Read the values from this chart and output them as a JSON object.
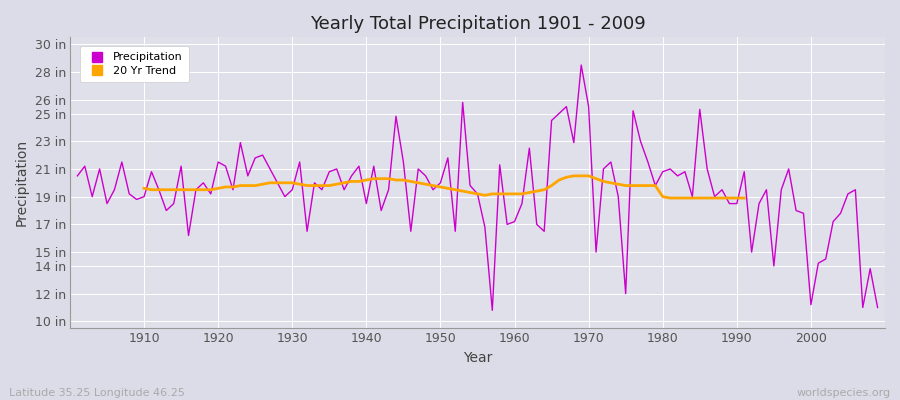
{
  "title": "Yearly Total Precipitation 1901 - 2009",
  "xlabel": "Year",
  "ylabel": "Precipitation",
  "lat_lon_label": "Latitude 35.25 Longitude 46.25",
  "watermark": "worldspecies.org",
  "bg_color": "#dcdce8",
  "plot_bg_color": "#e0e0ea",
  "precip_color": "#cc00cc",
  "trend_color": "#ffa500",
  "years": [
    1901,
    1902,
    1903,
    1904,
    1905,
    1906,
    1907,
    1908,
    1909,
    1910,
    1911,
    1912,
    1913,
    1914,
    1915,
    1916,
    1917,
    1918,
    1919,
    1920,
    1921,
    1922,
    1923,
    1924,
    1925,
    1926,
    1927,
    1928,
    1929,
    1930,
    1931,
    1932,
    1933,
    1934,
    1935,
    1936,
    1937,
    1938,
    1939,
    1940,
    1941,
    1942,
    1943,
    1944,
    1945,
    1946,
    1947,
    1948,
    1949,
    1950,
    1951,
    1952,
    1953,
    1954,
    1955,
    1956,
    1957,
    1958,
    1959,
    1960,
    1961,
    1962,
    1963,
    1964,
    1965,
    1966,
    1967,
    1968,
    1969,
    1970,
    1971,
    1972,
    1973,
    1974,
    1975,
    1976,
    1977,
    1978,
    1979,
    1980,
    1981,
    1982,
    1983,
    1984,
    1985,
    1986,
    1987,
    1988,
    1989,
    1990,
    1991,
    1992,
    1993,
    1994,
    1995,
    1996,
    1997,
    1998,
    1999,
    2000,
    2001,
    2002,
    2003,
    2004,
    2005,
    2006,
    2007,
    2008,
    2009
  ],
  "precip": [
    20.5,
    21.2,
    19.0,
    21.0,
    18.5,
    19.5,
    21.5,
    19.2,
    18.8,
    19.0,
    20.8,
    19.5,
    18.0,
    18.5,
    21.2,
    16.2,
    19.5,
    20.0,
    19.2,
    21.5,
    21.2,
    19.5,
    22.9,
    20.5,
    21.8,
    22.0,
    21.0,
    20.0,
    19.0,
    19.5,
    21.5,
    16.5,
    20.0,
    19.5,
    20.8,
    21.0,
    19.5,
    20.5,
    21.2,
    18.5,
    21.2,
    18.0,
    19.5,
    24.8,
    21.5,
    16.5,
    21.0,
    20.5,
    19.5,
    20.0,
    21.8,
    16.5,
    25.8,
    19.8,
    19.2,
    16.8,
    10.8,
    21.3,
    17.0,
    17.2,
    18.5,
    22.5,
    17.0,
    16.5,
    24.5,
    25.0,
    25.5,
    22.9,
    28.5,
    25.5,
    15.0,
    21.0,
    21.5,
    19.0,
    12.0,
    25.2,
    23.0,
    21.5,
    19.8,
    20.8,
    21.0,
    20.5,
    20.8,
    19.0,
    25.3,
    21.0,
    19.0,
    19.5,
    18.5,
    18.5,
    20.8,
    15.0,
    18.5,
    19.5,
    14.0,
    19.5,
    21.0,
    18.0,
    17.8,
    11.2,
    14.2,
    14.5,
    17.2,
    17.8,
    19.2,
    19.5,
    11.0,
    13.8,
    11.0
  ],
  "trend_years": [
    1910,
    1911,
    1912,
    1913,
    1914,
    1915,
    1916,
    1917,
    1918,
    1919,
    1920,
    1921,
    1922,
    1923,
    1924,
    1925,
    1926,
    1927,
    1928,
    1929,
    1930,
    1931,
    1932,
    1933,
    1934,
    1935,
    1936,
    1937,
    1938,
    1939,
    1940,
    1941,
    1942,
    1943,
    1944,
    1945,
    1946,
    1947,
    1948,
    1949,
    1950,
    1951,
    1952,
    1953,
    1954,
    1955,
    1956,
    1957,
    1958,
    1959,
    1960,
    1961,
    1962,
    1963,
    1964,
    1965,
    1966,
    1967,
    1968,
    1969,
    1970,
    1971,
    1972,
    1973,
    1974,
    1975,
    1976,
    1977,
    1978,
    1979,
    1980,
    1981,
    1982,
    1983,
    1984,
    1985,
    1986,
    1987,
    1988,
    1989,
    1990,
    1991
  ],
  "trend": [
    19.6,
    19.5,
    19.5,
    19.5,
    19.5,
    19.5,
    19.5,
    19.5,
    19.5,
    19.5,
    19.6,
    19.7,
    19.7,
    19.8,
    19.8,
    19.8,
    19.9,
    20.0,
    20.0,
    20.0,
    20.0,
    19.9,
    19.8,
    19.8,
    19.8,
    19.8,
    19.9,
    20.0,
    20.1,
    20.1,
    20.2,
    20.3,
    20.3,
    20.3,
    20.2,
    20.2,
    20.1,
    20.0,
    19.9,
    19.8,
    19.7,
    19.6,
    19.5,
    19.4,
    19.3,
    19.2,
    19.1,
    19.2,
    19.2,
    19.2,
    19.2,
    19.2,
    19.3,
    19.4,
    19.5,
    19.8,
    20.2,
    20.4,
    20.5,
    20.5,
    20.5,
    20.3,
    20.1,
    20.0,
    19.9,
    19.8,
    19.8,
    19.8,
    19.8,
    19.8,
    19.0,
    18.9,
    18.9,
    18.9,
    18.9,
    18.9,
    18.9,
    18.9,
    18.9,
    18.9,
    18.9,
    18.9
  ],
  "yticks": [
    10,
    12,
    14,
    15,
    17,
    19,
    21,
    23,
    25,
    26,
    28,
    30
  ],
  "ytick_labels": [
    "10 in",
    "12 in",
    "14 in",
    "15 in",
    "17 in",
    "19 in",
    "21 in",
    "23 in",
    "25 in",
    "26 in",
    "28 in",
    "30 in"
  ],
  "xticks": [
    1910,
    1920,
    1930,
    1940,
    1950,
    1960,
    1970,
    1980,
    1990,
    2000
  ],
  "ylim": [
    9.5,
    30.5
  ],
  "xlim": [
    1900,
    2010
  ]
}
